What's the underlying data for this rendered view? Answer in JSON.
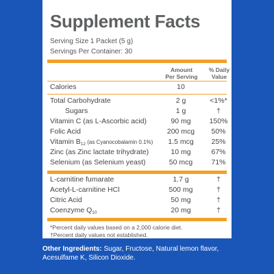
{
  "label": {
    "title": "Supplement Facts",
    "serving_size": "Serving Size 1 Packet (5 g)",
    "servings_per_container": "Servings Per Container: 30",
    "col_amount_line1": "Amount",
    "col_amount_line2": "Per Serving",
    "col_dv_line1": "% Daily",
    "col_dv_line2": "Value",
    "calories": {
      "name": "Calories",
      "amount": "10",
      "dv": ""
    },
    "rows_group1": [
      {
        "name": "Total Carbohydrate",
        "amount": "2 g",
        "dv": "<1%*"
      },
      {
        "name": "Sugars",
        "amount": "1 g",
        "dv": "†"
      },
      {
        "name": "Vitamin C (as L-Ascorbic acid)",
        "amount": "90 mg",
        "dv": "150%"
      },
      {
        "name": "Folic Acid",
        "amount": "200 mcg",
        "dv": "50%"
      },
      {
        "name_main": "Vitamin B",
        "name_sub": "12",
        "name_detail": " (as Cyanocobalamin 0.1%)",
        "amount": "1.5 mcg",
        "dv": "25%"
      },
      {
        "name": "Zinc (as Zinc lactate trihydrate)",
        "amount": "10 mg",
        "dv": "67%"
      },
      {
        "name": "Selenium (as Selenium yeast)",
        "amount": "50 mcg",
        "dv": "71%"
      }
    ],
    "rows_group2": [
      {
        "name": "L-carnitine fumarate",
        "amount": "1.7 g",
        "dv": "†"
      },
      {
        "name": "Acetyl-L-carnitine HCl",
        "amount": "500 mg",
        "dv": "†"
      },
      {
        "name": "Citric Acid",
        "amount": "50 mg",
        "dv": "†"
      },
      {
        "name_main": "Coenzyme Q",
        "name_sub": "10",
        "amount": "20 mg",
        "dv": "†"
      }
    ],
    "footnote1": "*Percent daily values based on a 2,000 calorie diet.",
    "footnote2": "†Percent daily values not established."
  },
  "other_ingredients": {
    "heading": "Other Ingredients:",
    "text": " Sugar, Fructose, Natural lemon flavor, Acesulfame K, Silicon Dioxide."
  },
  "colors": {
    "background": "#1a56b8",
    "rule": "#f2a128",
    "title": "#5e6062"
  }
}
